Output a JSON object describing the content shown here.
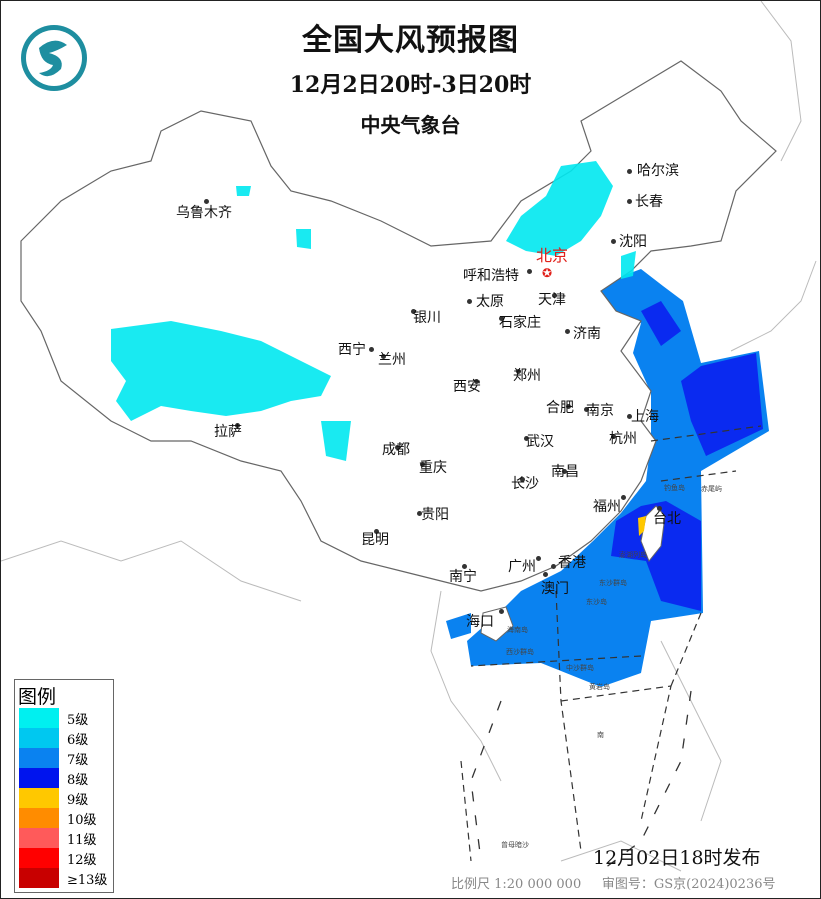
{
  "header": {
    "title": "全国大风预报图",
    "period": "12月2日20时-3日20时",
    "issuer": "中央气象台",
    "logo": "cma-logo"
  },
  "capital": {
    "name": "北京",
    "color": "#e0201a"
  },
  "cities": [
    {
      "name": "乌鲁木齐"
    },
    {
      "name": "哈尔滨"
    },
    {
      "name": "长春"
    },
    {
      "name": "沈阳"
    },
    {
      "name": "呼和浩特"
    },
    {
      "name": "天津"
    },
    {
      "name": "太原"
    },
    {
      "name": "石家庄"
    },
    {
      "name": "银川"
    },
    {
      "name": "济南"
    },
    {
      "name": "西宁"
    },
    {
      "name": "兰州"
    },
    {
      "name": "郑州"
    },
    {
      "name": "西安"
    },
    {
      "name": "合肥"
    },
    {
      "name": "南京"
    },
    {
      "name": "上海"
    },
    {
      "name": "杭州"
    },
    {
      "name": "拉萨"
    },
    {
      "name": "成都"
    },
    {
      "name": "武汉"
    },
    {
      "name": "重庆"
    },
    {
      "name": "南昌"
    },
    {
      "name": "长沙"
    },
    {
      "name": "贵阳"
    },
    {
      "name": "福州"
    },
    {
      "name": "台北"
    },
    {
      "name": "昆明"
    },
    {
      "name": "南宁"
    },
    {
      "name": "广州"
    },
    {
      "name": "香港"
    },
    {
      "name": "澳门"
    },
    {
      "name": "海口"
    }
  ],
  "islands": [
    "钓鱼岛",
    "赤尾屿",
    "澎湖列岛",
    "东沙群岛",
    "东沙岛",
    "海南岛",
    "西沙群岛",
    "中沙群岛",
    "黄岩岛",
    "南",
    "曾母暗沙"
  ],
  "legend": {
    "title": "图例",
    "items": [
      {
        "label": "5级",
        "color": "#00f0f0"
      },
      {
        "label": "6级",
        "color": "#00c8f0"
      },
      {
        "label": "7级",
        "color": "#0a82f0"
      },
      {
        "label": "8级",
        "color": "#0014ee"
      },
      {
        "label": "9级",
        "color": "#ffc800"
      },
      {
        "label": "10级",
        "color": "#ff8c00"
      },
      {
        "label": "11级",
        "color": "#ff5a5a"
      },
      {
        "label": "12级",
        "color": "#ff0000"
      },
      {
        "label": "≥13级",
        "color": "#c80000"
      }
    ]
  },
  "footer": {
    "issued": "12月02日18时发布",
    "scale": "比例尺 1:20 000 000",
    "approval": "审图号：GS京(2024)0236号"
  }
}
